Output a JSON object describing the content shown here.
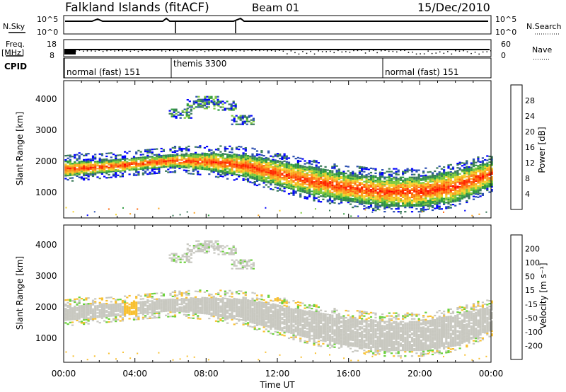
{
  "header": {
    "station": "Falkland Islands (fitACF)",
    "beam": "Beam 01",
    "date": "15/Dec/2010"
  },
  "noise_panel": {
    "left_label": "N.Sky",
    "right_label": "N.Search",
    "left_top_tick": "10^5",
    "left_bottom_tick": "10^0",
    "right_top_tick": "10^5",
    "right_bottom_tick": "10^0"
  },
  "freq_panel": {
    "label_line1": "Freq.",
    "label_line2": "[MHz]",
    "left_top_tick": "18",
    "left_bottom_tick": "8",
    "right_label": "Nave",
    "right_top_tick": "60",
    "right_bottom_tick": "0"
  },
  "cpid_panel": {
    "label": "CPID",
    "segments": [
      {
        "start_h": 0.0,
        "label": "normal (fast) 151"
      },
      {
        "start_h": 6.0,
        "label": "themis 3300"
      },
      {
        "start_h": 18.0,
        "label": "normal (fast) 151"
      }
    ]
  },
  "power_panel": {
    "ylabel": "Slant Range [km]",
    "yticks": [
      "1000",
      "2000",
      "3000",
      "4000"
    ],
    "colorbar_label": "Power [dB]",
    "colorbar_ticks": [
      "4",
      "8",
      "12",
      "16",
      "20",
      "24",
      "28"
    ],
    "colors": [
      "#0000ff",
      "#2b4fb0",
      "#3a7a5a",
      "#2f9a3f",
      "#7cc83a",
      "#f5d22a",
      "#f9a21f",
      "#ff6a10",
      "#ff2a00",
      "#ff0000"
    ]
  },
  "velocity_panel": {
    "ylabel": "Slant Range [km]",
    "yticks": [
      "1000",
      "2000",
      "3000",
      "4000"
    ],
    "colorbar_label": "Velocity [m s⁻¹]",
    "colorbar_ticks": [
      "200",
      "100",
      "50",
      "15",
      "-15",
      "-50",
      "-100",
      "-200"
    ],
    "colors": [
      "#1a1aa0",
      "#2a5ad6",
      "#1f9a2f",
      "#6ad13a",
      "#c8c8c0",
      "#f8c030",
      "#ff8a10",
      "#ff4000",
      "#ff0000"
    ]
  },
  "xaxis": {
    "label": "Time UT",
    "ticks": [
      "00:00",
      "04:00",
      "08:00",
      "12:00",
      "16:00",
      "20:00",
      "00:00"
    ]
  },
  "chart_data": {
    "type": "heatmap",
    "x_range_hours": [
      0,
      24
    ],
    "y_range_km": [
      180,
      4500
    ],
    "power_band_upper_km": [
      [
        0,
        2000
      ],
      [
        2,
        2000
      ],
      [
        4,
        2100
      ],
      [
        6,
        2200
      ],
      [
        8,
        2250
      ],
      [
        10,
        2200
      ],
      [
        12,
        2000
      ],
      [
        14,
        1800
      ],
      [
        16,
        1600
      ],
      [
        18,
        1500
      ],
      [
        20,
        1500
      ],
      [
        22,
        1700
      ],
      [
        24,
        2000
      ]
    ],
    "power_band_lower_km": [
      [
        0,
        1500
      ],
      [
        2,
        1600
      ],
      [
        4,
        1700
      ],
      [
        6,
        1800
      ],
      [
        8,
        1700
      ],
      [
        10,
        1500
      ],
      [
        12,
        1200
      ],
      [
        14,
        900
      ],
      [
        16,
        700
      ],
      [
        18,
        550
      ],
      [
        20,
        550
      ],
      [
        22,
        700
      ],
      [
        24,
        1200
      ]
    ],
    "upper_arc_km": [
      [
        6.5,
        3500
      ],
      [
        7.5,
        3800
      ],
      [
        8.0,
        3900
      ],
      [
        9.0,
        3750
      ],
      [
        10.0,
        3300
      ]
    ]
  }
}
